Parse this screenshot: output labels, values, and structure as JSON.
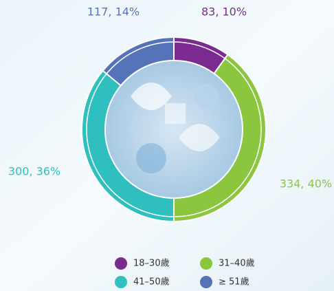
{
  "chart_data": {
    "type": "donut",
    "categories": [
      "18–30歲",
      "31–40歲",
      "41–50歲",
      "≥ 51歲"
    ],
    "values": [
      83,
      334,
      300,
      117
    ],
    "value_labels": [
      "83, 10%",
      "334, 40%",
      "300, 36%",
      "117, 14%"
    ],
    "colors": [
      "#7b2a8f",
      "#8cc63f",
      "#2fbfbf",
      "#5573b9"
    ],
    "legend": "bottom"
  }
}
